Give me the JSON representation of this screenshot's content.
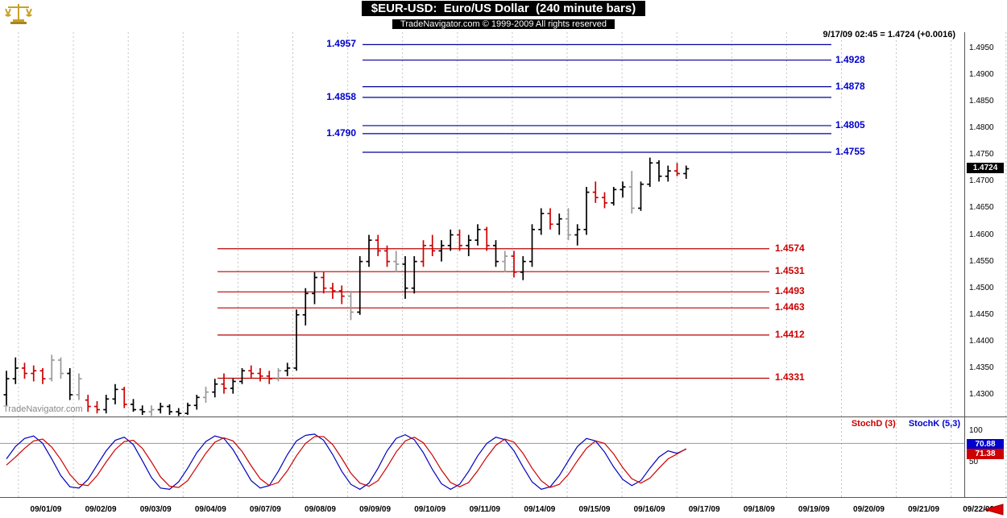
{
  "header": {
    "title": "$EUR-USD:  Euro/US Dollar  (240 minute bars)",
    "subtitle": "TradeNavigator.com © 1999-2009 All rights reserved",
    "quote": "9/17/09 02:45 = 1.4724 (+0.0016)"
  },
  "watermark": "TradeNavigator.com",
  "logo_icon": "gold-scales-icon",
  "colors": {
    "up_bar": "#000000",
    "down_bar": "#cc0000",
    "neutral_bar": "#999999",
    "resistance": "#000099",
    "support": "#bb0000",
    "grid": "#c4c4c4",
    "stoch_k": "#0000bb",
    "stoch_d": "#cc0000",
    "price_badge_bg": "#000000",
    "scroll_arrow": "#dd0000",
    "logo_gold": "#c8a227"
  },
  "price_axis": {
    "ticks": [
      "1.4950",
      "1.4900",
      "1.4850",
      "1.4800",
      "1.4750",
      "1.4700",
      "1.4650",
      "1.4600",
      "1.4550",
      "1.4500",
      "1.4450",
      "1.4400",
      "1.4350",
      "1.4300"
    ],
    "last_price_badge": "1.4724"
  },
  "stoch": {
    "legend_d": "StochD (3)",
    "legend_k": "StochK (5,3)",
    "axis": [
      "100",
      "50"
    ],
    "badge_k": "70.88",
    "badge_d": "71.38"
  },
  "chart_data": {
    "type": "bar",
    "subtype": "ohlc",
    "title": "$EUR-USD Euro/US Dollar (240 minute bars)",
    "ylim": [
      1.426,
      1.496
    ],
    "x_dates": [
      "09/01/09",
      "09/02/09",
      "09/03/09",
      "09/04/09",
      "09/07/09",
      "09/08/09",
      "09/09/09",
      "09/10/09",
      "09/11/09",
      "09/14/09",
      "09/15/09",
      "09/16/09",
      "09/17/09",
      "09/18/09",
      "09/19/09",
      "09/20/09",
      "09/21/09",
      "09/22/09"
    ],
    "resistance_lines": [
      {
        "price": 1.4957,
        "label": "1.4957",
        "side": "left"
      },
      {
        "price": 1.4928,
        "label": "1.4928",
        "side": "right"
      },
      {
        "price": 1.4878,
        "label": "1.4878",
        "side": "right"
      },
      {
        "price": 1.4858,
        "label": "1.4858",
        "side": "left"
      },
      {
        "price": 1.4805,
        "label": "1.4805",
        "side": "right"
      },
      {
        "price": 1.479,
        "label": "1.4790",
        "side": "left"
      },
      {
        "price": 1.4755,
        "label": "1.4755",
        "side": "right"
      }
    ],
    "support_lines": [
      {
        "price": 1.4574,
        "label": "1.4574"
      },
      {
        "price": 1.4531,
        "label": "1.4531"
      },
      {
        "price": 1.4493,
        "label": "1.4493"
      },
      {
        "price": 1.4463,
        "label": "1.4463"
      },
      {
        "price": 1.4412,
        "label": "1.4412"
      },
      {
        "price": 1.4331,
        "label": "1.4331"
      }
    ],
    "bars": [
      [
        1.43,
        1.4345,
        1.428,
        1.433,
        "k"
      ],
      [
        1.433,
        1.437,
        1.432,
        1.435,
        "k"
      ],
      [
        1.435,
        1.436,
        1.433,
        1.434,
        "r"
      ],
      [
        1.434,
        1.4355,
        1.4325,
        1.4345,
        "r"
      ],
      [
        1.4345,
        1.435,
        1.432,
        1.433,
        "r"
      ],
      [
        1.433,
        1.4375,
        1.4325,
        1.4365,
        "g"
      ],
      [
        1.4365,
        1.437,
        1.433,
        1.434,
        "g"
      ],
      [
        1.434,
        1.435,
        1.429,
        1.43,
        "k"
      ],
      [
        1.43,
        1.434,
        1.429,
        1.433,
        "g"
      ],
      [
        1.429,
        1.43,
        1.4268,
        1.4278,
        "r"
      ],
      [
        1.4278,
        1.4288,
        1.4265,
        1.4272,
        "r"
      ],
      [
        1.4272,
        1.43,
        1.4265,
        1.4292,
        "k"
      ],
      [
        1.4292,
        1.432,
        1.4282,
        1.431,
        "k"
      ],
      [
        1.431,
        1.4315,
        1.4275,
        1.4282,
        "r"
      ],
      [
        1.4282,
        1.4292,
        1.4268,
        1.4272,
        "k"
      ],
      [
        1.4272,
        1.428,
        1.4262,
        1.4268,
        "k"
      ],
      [
        1.4268,
        1.428,
        1.426,
        1.4272,
        "g"
      ],
      [
        1.4272,
        1.4285,
        1.4265,
        1.4278,
        "k"
      ],
      [
        1.4278,
        1.4282,
        1.4262,
        1.4268,
        "k"
      ],
      [
        1.4268,
        1.4275,
        1.426,
        1.4265,
        "k"
      ],
      [
        1.4265,
        1.4285,
        1.4262,
        1.428,
        "k"
      ],
      [
        1.428,
        1.43,
        1.4272,
        1.4295,
        "k"
      ],
      [
        1.4295,
        1.4315,
        1.4285,
        1.4305,
        "g"
      ],
      [
        1.4305,
        1.433,
        1.4295,
        1.432,
        "k"
      ],
      [
        1.432,
        1.434,
        1.4302,
        1.4312,
        "r"
      ],
      [
        1.4312,
        1.433,
        1.4302,
        1.4325,
        "k"
      ],
      [
        1.4325,
        1.435,
        1.432,
        1.4345,
        "k"
      ],
      [
        1.4345,
        1.4355,
        1.433,
        1.434,
        "r"
      ],
      [
        1.434,
        1.435,
        1.4325,
        1.4335,
        "r"
      ],
      [
        1.4335,
        1.4345,
        1.432,
        1.433,
        "r"
      ],
      [
        1.433,
        1.435,
        1.4325,
        1.4345,
        "g"
      ],
      [
        1.4345,
        1.436,
        1.4335,
        1.435,
        "k"
      ],
      [
        1.435,
        1.446,
        1.4345,
        1.445,
        "k"
      ],
      [
        1.445,
        1.45,
        1.443,
        1.449,
        "k"
      ],
      [
        1.449,
        1.453,
        1.447,
        1.452,
        "k"
      ],
      [
        1.452,
        1.453,
        1.449,
        1.45,
        "r"
      ],
      [
        1.45,
        1.451,
        1.448,
        1.4495,
        "r"
      ],
      [
        1.4495,
        1.4505,
        1.447,
        1.4485,
        "r"
      ],
      [
        1.4485,
        1.4495,
        1.444,
        1.4455,
        "g"
      ],
      [
        1.4455,
        1.456,
        1.445,
        1.455,
        "k"
      ],
      [
        1.455,
        1.46,
        1.454,
        1.459,
        "k"
      ],
      [
        1.459,
        1.46,
        1.456,
        1.457,
        "r"
      ],
      [
        1.457,
        1.458,
        1.454,
        1.455,
        "r"
      ],
      [
        1.455,
        1.457,
        1.453,
        1.4545,
        "g"
      ],
      [
        1.4545,
        1.456,
        1.448,
        1.45,
        "k"
      ],
      [
        1.45,
        1.456,
        1.449,
        1.455,
        "k"
      ],
      [
        1.455,
        1.459,
        1.454,
        1.458,
        "r"
      ],
      [
        1.458,
        1.46,
        1.456,
        1.457,
        "r"
      ],
      [
        1.457,
        1.459,
        1.455,
        1.458,
        "k"
      ],
      [
        1.458,
        1.461,
        1.457,
        1.46,
        "k"
      ],
      [
        1.46,
        1.461,
        1.457,
        1.458,
        "r"
      ],
      [
        1.458,
        1.46,
        1.456,
        1.459,
        "k"
      ],
      [
        1.459,
        1.462,
        1.458,
        1.461,
        "k"
      ],
      [
        1.461,
        1.4615,
        1.457,
        1.458,
        "r"
      ],
      [
        1.458,
        1.459,
        1.454,
        1.455,
        "k"
      ],
      [
        1.455,
        1.457,
        1.453,
        1.456,
        "g"
      ],
      [
        1.456,
        1.457,
        1.452,
        1.453,
        "r"
      ],
      [
        1.453,
        1.456,
        1.4515,
        1.455,
        "k"
      ],
      [
        1.455,
        1.462,
        1.454,
        1.461,
        "k"
      ],
      [
        1.461,
        1.465,
        1.46,
        1.464,
        "k"
      ],
      [
        1.464,
        1.465,
        1.461,
        1.462,
        "r"
      ],
      [
        1.462,
        1.464,
        1.46,
        1.463,
        "k"
      ],
      [
        1.463,
        1.465,
        1.459,
        1.46,
        "g"
      ],
      [
        1.46,
        1.462,
        1.458,
        1.461,
        "k"
      ],
      [
        1.461,
        1.469,
        1.46,
        1.468,
        "k"
      ],
      [
        1.468,
        1.47,
        1.466,
        1.467,
        "r"
      ],
      [
        1.467,
        1.468,
        1.465,
        1.466,
        "r"
      ],
      [
        1.466,
        1.469,
        1.4655,
        1.4685,
        "k"
      ],
      [
        1.4685,
        1.47,
        1.467,
        1.469,
        "k"
      ],
      [
        1.469,
        1.472,
        1.464,
        1.465,
        "g"
      ],
      [
        1.465,
        1.47,
        1.4645,
        1.4695,
        "k"
      ],
      [
        1.4695,
        1.4745,
        1.469,
        1.4735,
        "k"
      ],
      [
        1.4735,
        1.474,
        1.47,
        1.471,
        "k"
      ],
      [
        1.471,
        1.473,
        1.47,
        1.472,
        "k"
      ],
      [
        1.472,
        1.4735,
        1.471,
        1.4715,
        "r"
      ],
      [
        1.4715,
        1.473,
        1.4705,
        1.4724,
        "k"
      ]
    ],
    "stochastic": {
      "levels": [
        100,
        50
      ],
      "upper_reference": 80,
      "k_last": 70.88,
      "d_last": 71.38,
      "k": [
        55,
        75,
        88,
        92,
        80,
        55,
        28,
        10,
        8,
        22,
        45,
        68,
        85,
        90,
        78,
        52,
        25,
        8,
        6,
        18,
        40,
        65,
        83,
        92,
        88,
        70,
        45,
        20,
        8,
        12,
        35,
        62,
        84,
        93,
        95,
        85,
        62,
        35,
        14,
        6,
        16,
        40,
        68,
        88,
        94,
        86,
        65,
        38,
        15,
        6,
        14,
        35,
        60,
        80,
        90,
        86,
        68,
        42,
        18,
        6,
        10,
        28,
        52,
        75,
        88,
        84,
        66,
        42,
        22,
        12,
        20,
        40,
        58,
        68,
        64,
        70.88
      ],
      "d": [
        45,
        58,
        72,
        84,
        87,
        74,
        54,
        30,
        14,
        12,
        28,
        50,
        70,
        83,
        85,
        72,
        50,
        26,
        11,
        9,
        20,
        42,
        64,
        82,
        89,
        84,
        67,
        44,
        23,
        12,
        17,
        36,
        60,
        80,
        91,
        91,
        78,
        56,
        32,
        16,
        11,
        20,
        42,
        66,
        84,
        90,
        81,
        61,
        37,
        17,
        10,
        17,
        36,
        58,
        77,
        87,
        82,
        64,
        40,
        20,
        9,
        14,
        30,
        52,
        72,
        84,
        80,
        63,
        41,
        23,
        16,
        24,
        40,
        55,
        63,
        71.38
      ]
    }
  }
}
